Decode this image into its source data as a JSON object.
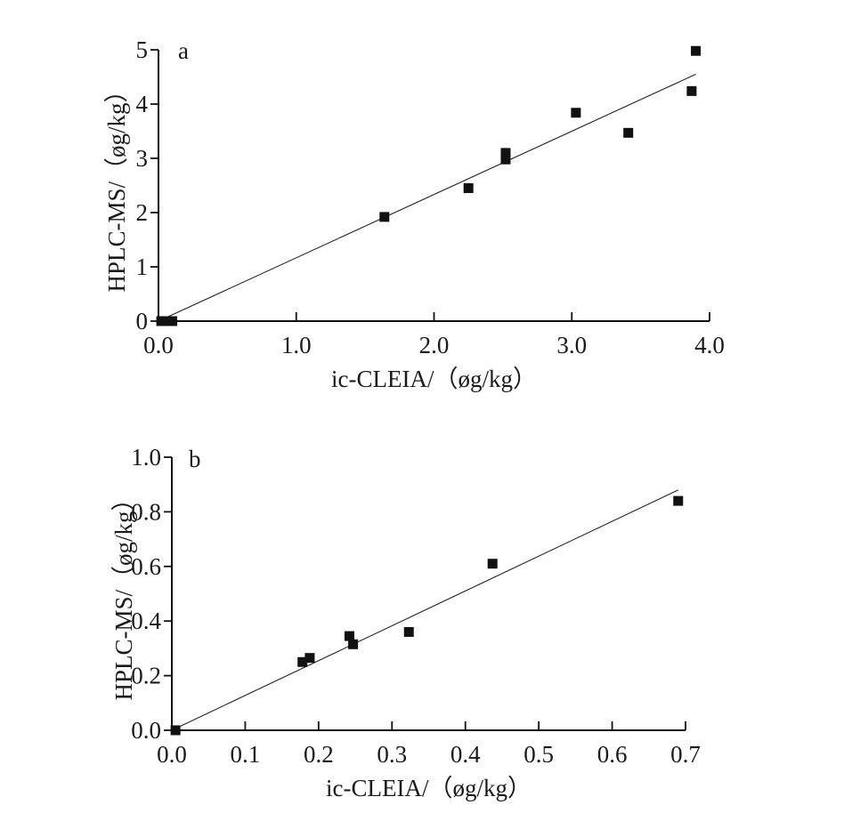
{
  "chart_data": [
    {
      "type": "scatter",
      "panel_label": "a",
      "xlabel": "ic-CLEIA/（øg/kg）",
      "ylabel": "HPLC-MS/（øg/kg）",
      "xlim": [
        0,
        4.0
      ],
      "ylim": [
        0,
        5
      ],
      "xticks": [
        0,
        1,
        2,
        3,
        4
      ],
      "xtick_labels": [
        "0.0",
        "1.0",
        "2.0",
        "3.0",
        "4.0"
      ],
      "yticks": [
        0,
        1,
        2,
        3,
        4,
        5
      ],
      "ytick_labels": [
        "0",
        "1",
        "2",
        "3",
        "4",
        "5"
      ],
      "points": [
        [
          0.02,
          0
        ],
        [
          0.06,
          0
        ],
        [
          0.1,
          0
        ],
        [
          1.64,
          1.92
        ],
        [
          2.25,
          2.45
        ],
        [
          2.52,
          3.1
        ],
        [
          2.52,
          2.98
        ],
        [
          3.03,
          3.84
        ],
        [
          3.41,
          3.47
        ],
        [
          3.87,
          4.24
        ],
        [
          3.9,
          4.98
        ]
      ],
      "fit_line": [
        [
          0,
          0
        ],
        [
          3.9,
          4.55
        ]
      ],
      "grid": false
    },
    {
      "type": "scatter",
      "panel_label": "b",
      "xlabel": "ic-CLEIA/（øg/kg）",
      "ylabel": "HPLC-MS/（øg/kg）",
      "xlim": [
        0,
        0.7
      ],
      "ylim": [
        0,
        1.0
      ],
      "xticks": [
        0,
        0.1,
        0.2,
        0.3,
        0.4,
        0.5,
        0.6,
        0.7
      ],
      "xtick_labels": [
        "0.0",
        "0.1",
        "0.2",
        "0.3",
        "0.4",
        "0.5",
        "0.6",
        "0.7"
      ],
      "yticks": [
        0,
        0.2,
        0.4,
        0.6,
        0.8,
        1.0
      ],
      "ytick_labels": [
        "0.0",
        "0.2",
        "0.4",
        "0.6",
        "0.8",
        "1.0"
      ],
      "points": [
        [
          0.005,
          0
        ],
        [
          0.178,
          0.25
        ],
        [
          0.188,
          0.265
        ],
        [
          0.242,
          0.345
        ],
        [
          0.247,
          0.315
        ],
        [
          0.323,
          0.36
        ],
        [
          0.437,
          0.61
        ],
        [
          0.69,
          0.84
        ]
      ],
      "fit_line": [
        [
          0,
          0
        ],
        [
          0.69,
          0.88
        ]
      ],
      "grid": false
    }
  ]
}
